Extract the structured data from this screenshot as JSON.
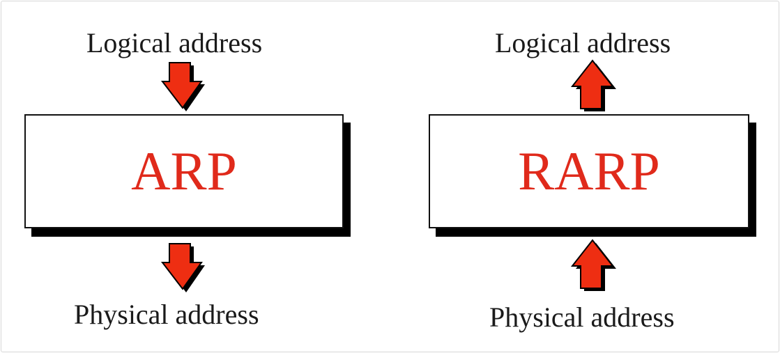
{
  "accent_color": "#e02a1b",
  "arrow_color": "#ee2e12",
  "arp": {
    "input_label": "Logical address",
    "protocol": "ARP",
    "output_label": "Physical address"
  },
  "rarp": {
    "output_label": "Logical address",
    "protocol": "RARP",
    "input_label": "Physical address"
  }
}
